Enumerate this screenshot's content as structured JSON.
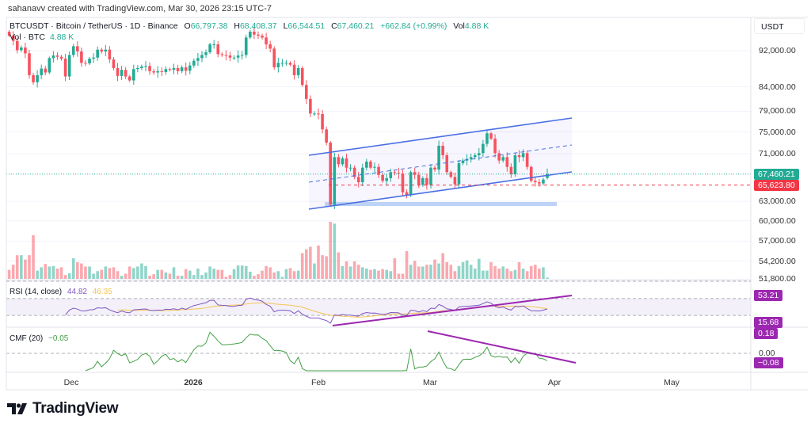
{
  "attribution": "sahanavv created with TradingView.com, Mar 30, 2026 23:15 UTC-7",
  "legend": {
    "symbol": "BTCUSDT · Bitcoin / TetherUS · 1D · Binance",
    "o_label": "O",
    "o": "66,797.38",
    "h_label": "H",
    "h": "68,408.37",
    "l_label": "L",
    "l": "66,544.51",
    "c_label": "C",
    "c": "67,460.21",
    "change": "+662.84 (+0.99%)",
    "vol_label": "Vol",
    "vol": "4.88 K"
  },
  "volume_legend": {
    "label": "Vol · BTC",
    "value": "4.88 K"
  },
  "price_scale": {
    "currency": "USDT",
    "ticks": [
      "92,000.00",
      "84,000.00",
      "79,000.00",
      "75,000.00",
      "71,000.00",
      "63,000.00",
      "60,000.00",
      "57,000.00",
      "54,200.00",
      "51,800.00"
    ],
    "tick_values": [
      92000,
      84000,
      79000,
      75000,
      71000,
      63000,
      60000,
      57000,
      54200,
      51800
    ],
    "last_price": "67,460.21",
    "line_price": "65,623.80"
  },
  "rsi": {
    "label": "RSI (14, close)",
    "value": "44.82",
    "ma_value": "46.35",
    "drawing_label": "53.21",
    "low_label": "15.68"
  },
  "cmf": {
    "label": "CMF (20)",
    "value": "−0.05",
    "zero_tick": "0.00",
    "upper_label": "0.18",
    "lower_label": "−0.08"
  },
  "time_axis": [
    "Dec",
    "2026",
    "Feb",
    "Mar",
    "Apr",
    "May"
  ],
  "logo": "TradingView",
  "colors": {
    "up": "#22ab94",
    "down": "#f7525f",
    "channel": "#4a6fe3",
    "rsi": "#7e57c2",
    "rsi_ma": "#f5c453",
    "cmf": "#43a047",
    "drawing": "#9c27b0",
    "last_price": "#22ab94",
    "line_price": "#f23645"
  },
  "chart_data": {
    "type": "candlestick",
    "symbol": "BTCUSDT",
    "interval": "1D",
    "x_range": [
      "2025-11-16",
      "2026-03-30"
    ],
    "y_scale": "log",
    "close": [
      95550,
      94290,
      92120,
      92740,
      91390,
      86510,
      84980,
      86510,
      87950,
      87090,
      90300,
      90900,
      90600,
      90180,
      86230,
      91020,
      93040,
      91820,
      89230,
      89110,
      90180,
      90420,
      92240,
      91820,
      92240,
      90000,
      88060,
      86340,
      87670,
      86230,
      85370,
      87840,
      88060,
      88410,
      88530,
      87380,
      87090,
      87380,
      87200,
      87840,
      87670,
      88060,
      87380,
      88240,
      87490,
      88640,
      89700,
      90300,
      91020,
      91630,
      93480,
      93480,
      91210,
      91020,
      90900,
      90420,
      90420,
      90900,
      91020,
      95100,
      96510,
      95800,
      95550,
      95100,
      93480,
      92490,
      88240,
      89230,
      89230,
      89230,
      88820,
      86510,
      88060,
      84410,
      81500,
      78550,
      78550,
      78450,
      75490,
      73020,
      62470,
      70400,
      69150,
      70170,
      68550,
      68550,
      66980,
      66090,
      68550,
      69610,
      68550,
      68690,
      67330,
      66310,
      66760,
      67790,
      67660,
      67520,
      64450,
      63940,
      67790,
      67330,
      65660,
      66760,
      65660,
      68550,
      68240,
      72440,
      70730,
      67790,
      66980,
      65740,
      69330,
      69800,
      70080,
      70400,
      70730,
      71110,
      72780,
      74740,
      73750,
      71110,
      69800,
      70400,
      68690,
      67430,
      70730,
      70400,
      71110,
      68690,
      66310,
      66090,
      65880,
      66540,
      67460.21
    ],
    "volume_k": [
      35,
      55,
      92,
      92,
      75,
      92,
      170,
      32,
      45,
      58,
      48,
      50,
      40,
      45,
      15,
      22,
      80,
      65,
      60,
      48,
      48,
      20,
      30,
      35,
      48,
      42,
      45,
      30,
      12,
      20,
      48,
      42,
      48,
      60,
      50,
      12,
      18,
      35,
      35,
      25,
      20,
      45,
      12,
      12,
      38,
      32,
      15,
      40,
      15,
      25,
      48,
      40,
      35,
      35,
      8,
      15,
      38,
      52,
      52,
      50,
      28,
      12,
      18,
      32,
      50,
      45,
      25,
      30,
      8,
      38,
      42,
      30,
      32,
      100,
      115,
      125,
      60,
      130,
      92,
      88,
      222,
      215,
      103,
      50,
      68,
      48,
      68,
      55,
      45,
      40,
      35,
      38,
      32,
      38,
      35,
      30,
      80,
      20,
      20,
      108,
      55,
      70,
      48,
      48,
      55,
      55,
      75,
      60,
      100,
      65,
      55,
      30,
      50,
      65,
      72,
      55,
      40,
      78,
      32,
      32,
      65,
      50,
      40,
      48,
      40,
      30,
      35,
      65,
      40,
      30,
      50,
      55,
      40,
      45,
      4.88
    ]
  }
}
